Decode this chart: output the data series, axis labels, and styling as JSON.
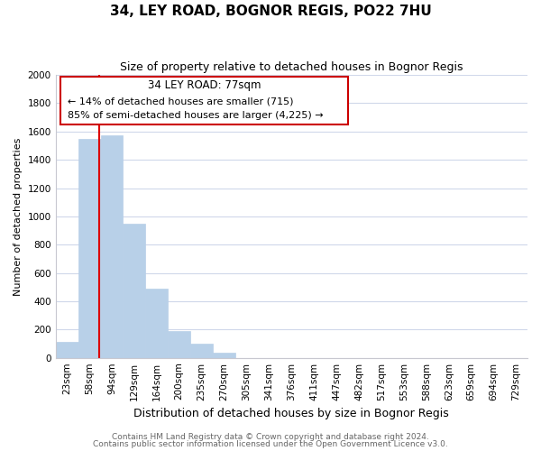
{
  "title": "34, LEY ROAD, BOGNOR REGIS, PO22 7HU",
  "subtitle": "Size of property relative to detached houses in Bognor Regis",
  "xlabel": "Distribution of detached houses by size in Bognor Regis",
  "ylabel": "Number of detached properties",
  "bar_color": "#b8d0e8",
  "bar_edge_color": "#b8d0e8",
  "categories": [
    "23sqm",
    "58sqm",
    "94sqm",
    "129sqm",
    "164sqm",
    "200sqm",
    "235sqm",
    "270sqm",
    "305sqm",
    "341sqm",
    "376sqm",
    "411sqm",
    "447sqm",
    "482sqm",
    "517sqm",
    "553sqm",
    "588sqm",
    "623sqm",
    "659sqm",
    "694sqm",
    "729sqm"
  ],
  "values": [
    110,
    1545,
    1570,
    950,
    490,
    190,
    100,
    35,
    0,
    0,
    0,
    0,
    0,
    0,
    0,
    0,
    0,
    0,
    0,
    0,
    0
  ],
  "vline_x": 1.42,
  "vline_color": "#dd0000",
  "ylim": [
    0,
    2000
  ],
  "yticks": [
    0,
    200,
    400,
    600,
    800,
    1000,
    1200,
    1400,
    1600,
    1800,
    2000
  ],
  "annotation_title": "34 LEY ROAD: 77sqm",
  "annotation_line1": "← 14% of detached houses are smaller (715)",
  "annotation_line2": "85% of semi-detached houses are larger (4,225) →",
  "annotation_box_color": "#ffffff",
  "annotation_box_edge": "#cc0000",
  "footer1": "Contains HM Land Registry data © Crown copyright and database right 2024.",
  "footer2": "Contains public sector information licensed under the Open Government Licence v3.0.",
  "title_fontsize": 11,
  "subtitle_fontsize": 9,
  "xlabel_fontsize": 9,
  "ylabel_fontsize": 8,
  "tick_fontsize": 7.5,
  "annotation_title_fontsize": 8.5,
  "annotation_text_fontsize": 8,
  "footer_fontsize": 6.5,
  "background_color": "#ffffff",
  "grid_color": "#d0d8ea"
}
